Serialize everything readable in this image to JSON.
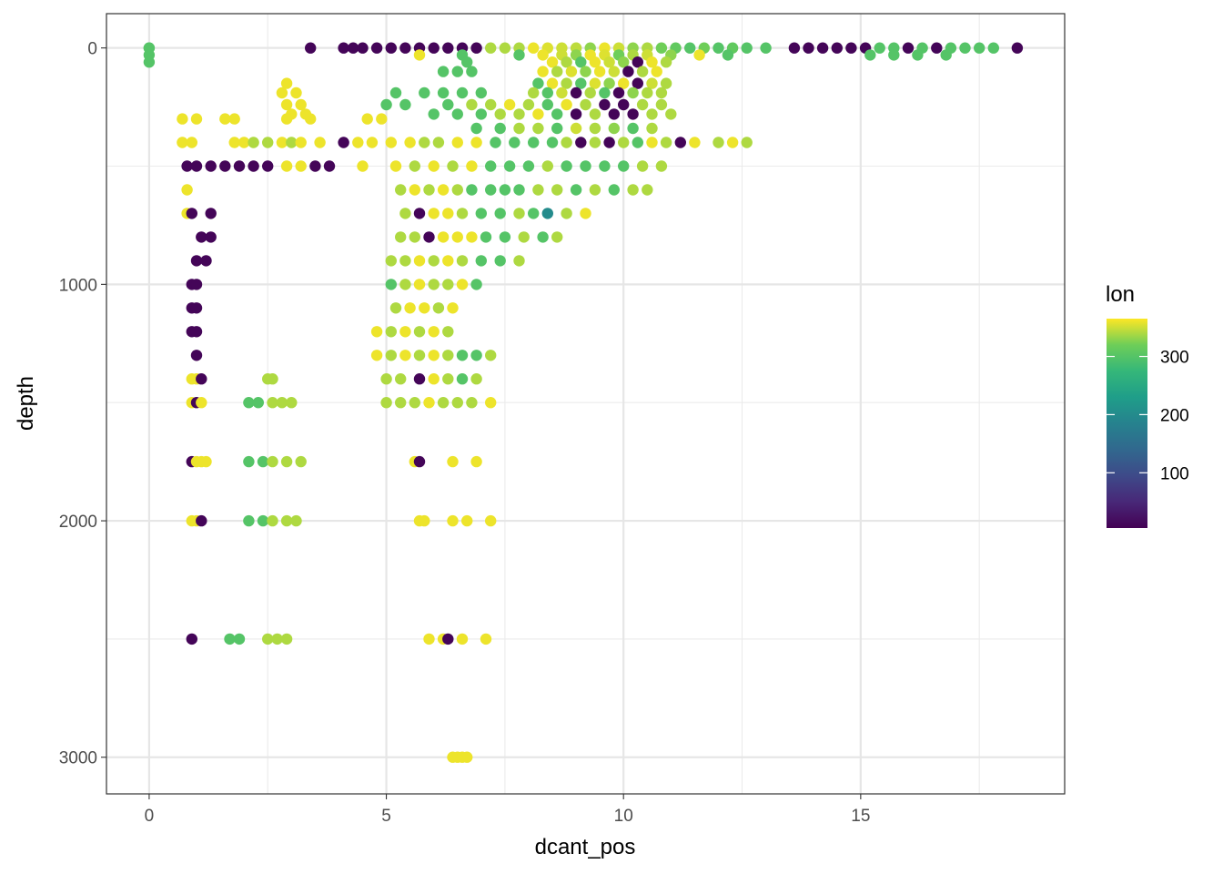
{
  "chart_data": {
    "type": "scatter",
    "title": "",
    "xlabel": "dcant_pos",
    "ylabel": "depth",
    "xlim": [
      -0.9,
      19.3
    ],
    "ylim": [
      -145,
      3155
    ],
    "y_reversed": true,
    "x_ticks": [
      0,
      5,
      10,
      15
    ],
    "y_ticks": [
      0,
      1000,
      2000,
      3000
    ],
    "x_tick_labels": [
      "0",
      "5",
      "10",
      "15"
    ],
    "y_tick_labels": [
      "0",
      "1000",
      "2000",
      "3000"
    ],
    "grid": true,
    "legend": {
      "title": "lon",
      "position": "right",
      "min": 5,
      "max": 365,
      "ticks": [
        100,
        200,
        300
      ],
      "tick_labels": [
        "100",
        "200",
        "300"
      ]
    },
    "point_groups": [
      {
        "depth": 0,
        "x": [
          0.0,
          0.0,
          3.4,
          4.1,
          4.3,
          4.5,
          4.8,
          5.1,
          5.4,
          5.7,
          6.0,
          6.3,
          6.6,
          6.9,
          7.2,
          7.5,
          7.8,
          8.1,
          8.4,
          8.7,
          9.0,
          9.3,
          9.6,
          9.9,
          10.2,
          10.5,
          10.8,
          11.1,
          11.4,
          11.7,
          12.0,
          12.3,
          12.6,
          13.0,
          13.6,
          13.9,
          14.2,
          14.5,
          14.8,
          15.1,
          15.4,
          15.7,
          16.0,
          16.3,
          16.6,
          16.9,
          17.2,
          17.5,
          17.8,
          18.3
        ],
        "lon": [
          300,
          300,
          10,
          10,
          10,
          10,
          10,
          10,
          10,
          10,
          10,
          10,
          10,
          10,
          340,
          340,
          340,
          360,
          355,
          350,
          345,
          330,
          360,
          350,
          330,
          340,
          320,
          310,
          300,
          320,
          300,
          310,
          300,
          300,
          10,
          10,
          10,
          10,
          10,
          10,
          300,
          300,
          10,
          300,
          10,
          300,
          300,
          300,
          300,
          10
        ]
      },
      {
        "depth": 30,
        "x": [
          0.0,
          5.7,
          6.6,
          7.8,
          8.3,
          8.7,
          9.0,
          9.3,
          9.6,
          9.9,
          10.2,
          10.5,
          11.0,
          11.6,
          12.2,
          15.2,
          15.7,
          16.2,
          16.8
        ],
        "lon": [
          300,
          360,
          300,
          300,
          360,
          350,
          330,
          360,
          355,
          320,
          340,
          350,
          330,
          360,
          300,
          300,
          300,
          300,
          300
        ]
      },
      {
        "depth": 60,
        "x": [
          0.0,
          6.7,
          8.5,
          8.8,
          9.1,
          9.4,
          9.7,
          10.0,
          10.3,
          10.6,
          10.9
        ],
        "lon": [
          300,
          300,
          360,
          340,
          300,
          360,
          350,
          330,
          10,
          360,
          340
        ]
      },
      {
        "depth": 100,
        "x": [
          6.2,
          6.5,
          6.8,
          8.3,
          8.6,
          8.9,
          9.2,
          9.5,
          9.8,
          10.1,
          10.4,
          10.7
        ],
        "lon": [
          300,
          300,
          300,
          360,
          340,
          355,
          330,
          360,
          350,
          10,
          340,
          360
        ]
      },
      {
        "depth": 150,
        "x": [
          2.9,
          8.2,
          8.5,
          8.8,
          9.1,
          9.4,
          9.7,
          10.0,
          10.3,
          10.6,
          10.9
        ],
        "lon": [
          360,
          300,
          360,
          340,
          300,
          355,
          330,
          360,
          10,
          350,
          340
        ]
      },
      {
        "depth": 190,
        "x": [
          2.8,
          3.1,
          5.2,
          5.8,
          6.2,
          6.6,
          7.0,
          8.1,
          8.4,
          8.7,
          9.0,
          9.3,
          9.6,
          9.9,
          10.2,
          10.5,
          10.8
        ],
        "lon": [
          360,
          360,
          300,
          300,
          300,
          300,
          300,
          340,
          300,
          350,
          10,
          340,
          300,
          10,
          330,
          340,
          340
        ]
      },
      {
        "depth": 240,
        "x": [
          2.9,
          3.2,
          5.0,
          5.4,
          6.3,
          6.8,
          7.2,
          7.6,
          8.0,
          8.4,
          8.8,
          9.2,
          9.6,
          10.0,
          10.4,
          10.8
        ],
        "lon": [
          360,
          360,
          300,
          300,
          300,
          340,
          340,
          360,
          340,
          300,
          360,
          340,
          10,
          10,
          340,
          340
        ]
      },
      {
        "depth": 280,
        "x": [
          3.0,
          3.3,
          6.0,
          6.5,
          7.0,
          7.4,
          7.8,
          8.2,
          8.6,
          9.0,
          9.4,
          9.8,
          10.2,
          10.6,
          11.0
        ],
        "lon": [
          360,
          360,
          300,
          300,
          300,
          340,
          340,
          360,
          300,
          10,
          340,
          10,
          10,
          340,
          340
        ]
      },
      {
        "depth": 300,
        "x": [
          0.7,
          1.0,
          1.6,
          1.8,
          2.9,
          3.4,
          4.6,
          4.9
        ],
        "lon": [
          360,
          360,
          360,
          360,
          360,
          360,
          360,
          360
        ]
      },
      {
        "depth": 340,
        "x": [
          6.9,
          7.4,
          7.8,
          8.2,
          8.6,
          9.0,
          9.4,
          9.8,
          10.2,
          10.6
        ],
        "lon": [
          300,
          300,
          340,
          340,
          300,
          350,
          340,
          330,
          300,
          340
        ]
      },
      {
        "depth": 400,
        "x": [
          0.7,
          0.9,
          1.8,
          2.0,
          2.2,
          2.5,
          2.8,
          3.0,
          3.2,
          3.6,
          4.1,
          4.4,
          4.7,
          5.1,
          5.5,
          5.8,
          6.1,
          6.5,
          6.9,
          7.3,
          7.7,
          8.1,
          8.5,
          8.8,
          9.1,
          9.4,
          9.7,
          10.0,
          10.3,
          10.6,
          10.9,
          11.2,
          11.5,
          12.0,
          12.3,
          12.6
        ],
        "lon": [
          360,
          360,
          360,
          360,
          340,
          340,
          360,
          340,
          360,
          360,
          10,
          360,
          360,
          360,
          360,
          340,
          340,
          360,
          360,
          300,
          300,
          300,
          300,
          340,
          10,
          340,
          10,
          340,
          300,
          360,
          340,
          10,
          360,
          340,
          360,
          340
        ]
      },
      {
        "depth": 500,
        "x": [
          0.8,
          1.0,
          1.3,
          1.6,
          1.9,
          2.2,
          2.5,
          2.9,
          3.2,
          3.5,
          3.8,
          4.5,
          5.2,
          5.6,
          6.0,
          6.4,
          6.8,
          7.2,
          7.6,
          8.0,
          8.4,
          8.8,
          9.2,
          9.6,
          10.0,
          10.4,
          10.8
        ],
        "lon": [
          10,
          10,
          10,
          10,
          10,
          10,
          10,
          360,
          360,
          10,
          10,
          360,
          360,
          340,
          360,
          340,
          360,
          300,
          300,
          300,
          340,
          300,
          300,
          300,
          300,
          340,
          340
        ]
      },
      {
        "depth": 600,
        "x": [
          0.8,
          5.3,
          5.6,
          5.9,
          6.2,
          6.5,
          6.8,
          7.2,
          7.5,
          7.8,
          8.2,
          8.6,
          9.0,
          9.4,
          9.8,
          10.2,
          10.5
        ],
        "lon": [
          360,
          340,
          360,
          340,
          360,
          340,
          300,
          300,
          300,
          300,
          340,
          340,
          300,
          340,
          300,
          340,
          340
        ]
      },
      {
        "depth": 700,
        "x": [
          0.8,
          0.9,
          1.3,
          5.4,
          5.7,
          6.0,
          6.3,
          6.6,
          7.0,
          7.4,
          7.8,
          8.1,
          8.4,
          8.8,
          9.2
        ],
        "lon": [
          360,
          10,
          10,
          340,
          10,
          360,
          360,
          340,
          300,
          300,
          340,
          300,
          200,
          340,
          360
        ]
      },
      {
        "depth": 800,
        "x": [
          1.1,
          1.3,
          5.3,
          5.6,
          5.9,
          6.2,
          6.5,
          6.8,
          7.1,
          7.5,
          7.9,
          8.3,
          8.6
        ],
        "lon": [
          10,
          10,
          340,
          340,
          10,
          360,
          360,
          360,
          300,
          300,
          340,
          300,
          340
        ]
      },
      {
        "depth": 900,
        "x": [
          1.0,
          1.2,
          5.1,
          5.4,
          5.7,
          6.0,
          6.3,
          6.6,
          7.0,
          7.4,
          7.8
        ],
        "lon": [
          10,
          10,
          340,
          340,
          360,
          340,
          360,
          340,
          300,
          300,
          340
        ]
      },
      {
        "depth": 1000,
        "x": [
          0.9,
          1.0,
          5.1,
          5.4,
          5.7,
          6.0,
          6.3,
          6.6,
          6.9
        ],
        "lon": [
          10,
          10,
          300,
          340,
          360,
          340,
          340,
          360,
          300
        ]
      },
      {
        "depth": 1100,
        "x": [
          0.9,
          1.0,
          5.2,
          5.5,
          5.8,
          6.1,
          6.4
        ],
        "lon": [
          10,
          10,
          340,
          360,
          360,
          340,
          360
        ]
      },
      {
        "depth": 1200,
        "x": [
          0.9,
          1.0,
          4.8,
          5.1,
          5.4,
          5.7,
          6.0,
          6.3
        ],
        "lon": [
          10,
          10,
          360,
          340,
          360,
          340,
          360,
          340
        ]
      },
      {
        "depth": 1300,
        "x": [
          1.0,
          4.8,
          5.1,
          5.4,
          5.7,
          6.0,
          6.3,
          6.6,
          6.9,
          7.2
        ],
        "lon": [
          10,
          360,
          340,
          360,
          340,
          360,
          340,
          300,
          300,
          340
        ]
      },
      {
        "depth": 1400,
        "x": [
          0.9,
          1.0,
          1.1,
          2.5,
          2.6,
          5.0,
          5.3,
          5.7,
          6.0,
          6.3,
          6.6,
          6.9
        ],
        "lon": [
          360,
          360,
          10,
          340,
          340,
          340,
          340,
          10,
          360,
          340,
          300,
          340
        ]
      },
      {
        "depth": 1500,
        "x": [
          0.9,
          1.0,
          1.1,
          2.1,
          2.3,
          2.6,
          2.8,
          3.0,
          5.0,
          5.3,
          5.6,
          5.9,
          6.2,
          6.5,
          6.8,
          7.2
        ],
        "lon": [
          360,
          10,
          360,
          300,
          300,
          340,
          340,
          340,
          340,
          340,
          340,
          360,
          340,
          340,
          340,
          360
        ]
      },
      {
        "depth": 1750,
        "x": [
          0.9,
          1.0,
          1.1,
          1.2,
          2.1,
          2.4,
          2.6,
          2.9,
          3.2,
          5.6,
          5.7,
          6.4,
          6.9
        ],
        "lon": [
          10,
          360,
          360,
          360,
          300,
          300,
          340,
          340,
          340,
          360,
          10,
          360,
          360
        ]
      },
      {
        "depth": 2000,
        "x": [
          0.9,
          1.0,
          1.1,
          2.1,
          2.4,
          2.6,
          2.9,
          3.1,
          5.7,
          5.8,
          6.4,
          6.7,
          7.2
        ],
        "lon": [
          360,
          360,
          10,
          300,
          300,
          340,
          340,
          340,
          360,
          360,
          360,
          360,
          360
        ]
      },
      {
        "depth": 2500,
        "x": [
          0.9,
          1.7,
          1.9,
          2.5,
          2.7,
          2.9,
          5.9,
          6.2,
          6.3,
          6.6,
          7.1
        ],
        "lon": [
          10,
          300,
          300,
          340,
          340,
          340,
          360,
          360,
          10,
          360,
          360
        ]
      },
      {
        "depth": 3000,
        "x": [
          6.4,
          6.5,
          6.6,
          6.7
        ],
        "lon": [
          360,
          360,
          360,
          360
        ]
      }
    ]
  }
}
